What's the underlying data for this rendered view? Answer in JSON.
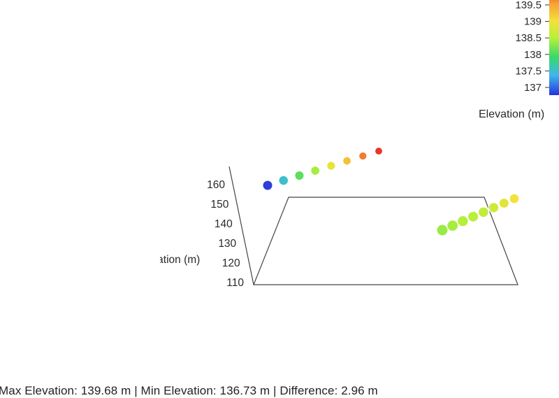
{
  "chart_data": {
    "type": "scatter",
    "projection": "3d",
    "zlabel": "Elevation (m)",
    "zticks": [
      110,
      120,
      130,
      140,
      150,
      160
    ],
    "colorbar": {
      "title": "Elevation (m)",
      "ticks": [
        "137",
        "137.5",
        "138",
        "138.5",
        "139",
        "139.5"
      ],
      "range": [
        136.73,
        139.68
      ],
      "colorscale": "jet"
    },
    "series": [
      {
        "points": [
          {
            "z": 136.73
          },
          {
            "z": 137.35
          },
          {
            "z": 137.85
          },
          {
            "z": 138.15
          },
          {
            "z": 138.6
          },
          {
            "z": 138.95
          },
          {
            "z": 139.35
          },
          {
            "z": 139.68
          }
        ]
      },
      {
        "points": [
          {
            "z": 138.1
          },
          {
            "z": 138.15
          },
          {
            "z": 138.2
          },
          {
            "z": 138.25
          },
          {
            "z": 138.3
          },
          {
            "z": 138.4
          },
          {
            "z": 138.55
          },
          {
            "z": 138.7
          }
        ]
      }
    ]
  },
  "stats_text": "Max Elevation: 139.68 m | Min Elevation: 136.73 m | Difference: 2.96 m",
  "colors": {
    "jet": [
      "#2d3fd8",
      "#3fb6ef",
      "#39d96a",
      "#b4f03a",
      "#f4e13a",
      "#f5a233",
      "#e8362a"
    ]
  }
}
